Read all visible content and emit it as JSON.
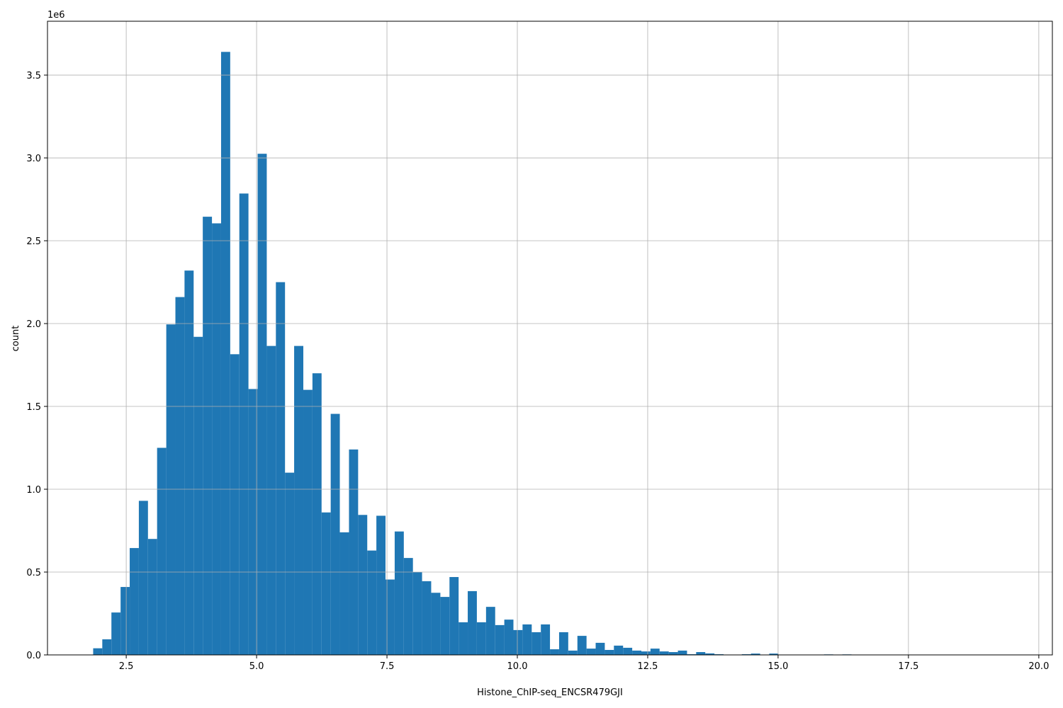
{
  "chart_data": {
    "type": "histogram",
    "x_label": "Histone_ChIP-seq_ENCSR479GJI",
    "y_label": "count",
    "y_offset_label": "1e6",
    "color": "#1f77b4",
    "grid": true,
    "xlim": [
      0.99,
      20.26
    ],
    "ylim": [
      0,
      3.825
    ],
    "xticks": [
      2.5,
      {
        "value": 5,
        "label": "5.0"
      },
      7.5,
      {
        "value": 10,
        "label": "10.0"
      },
      12.5,
      {
        "value": 15,
        "label": "15.0"
      },
      17.5,
      {
        "value": 20,
        "label": "20.0"
      }
    ],
    "yticks": [
      {
        "value": 0,
        "label": "0.0"
      },
      0.5,
      {
        "value": 1,
        "label": "1.0"
      },
      1.5,
      {
        "value": 2,
        "label": "2.0"
      },
      2.5,
      {
        "value": 3,
        "label": "3.0"
      },
      3.5
    ],
    "bins": [
      1.866,
      2.041,
      2.216,
      2.392,
      2.567,
      2.742,
      2.917,
      3.092,
      3.268,
      3.443,
      3.618,
      3.793,
      3.968,
      4.144,
      4.319,
      4.494,
      4.669,
      4.844,
      5.02,
      5.195,
      5.37,
      5.545,
      5.72,
      5.896,
      6.071,
      6.246,
      6.421,
      6.596,
      6.772,
      6.947,
      7.122,
      7.297,
      7.472,
      7.648,
      7.823,
      7.998,
      8.173,
      8.348,
      8.524,
      8.699,
      8.874,
      9.049,
      9.224,
      9.4,
      9.575,
      9.75,
      9.925,
      10.1,
      10.276,
      10.451,
      10.626,
      10.801,
      10.976,
      11.152,
      11.327,
      11.502,
      11.677,
      11.852,
      12.028,
      12.203,
      12.378,
      12.553,
      12.728,
      12.904,
      13.079,
      13.254,
      13.429,
      13.604,
      13.78,
      13.955,
      14.13,
      14.305,
      14.48,
      14.656,
      14.831,
      15.006,
      15.181,
      15.356,
      15.532,
      15.707,
      15.882,
      16.057,
      16.232,
      16.408,
      16.583,
      16.758,
      16.933,
      17.108,
      17.284,
      17.459,
      17.634,
      17.809,
      17.984,
      18.16,
      18.335,
      18.51,
      18.685,
      18.86,
      19.036,
      19.211,
      19.386
    ],
    "values": [
      0.04,
      0.094,
      0.256,
      0.41,
      0.645,
      0.93,
      0.7,
      1.25,
      1.995,
      2.16,
      2.32,
      1.92,
      2.645,
      2.605,
      3.64,
      1.815,
      2.785,
      1.605,
      3.025,
      1.865,
      2.25,
      1.1,
      1.865,
      1.6,
      1.7,
      0.86,
      1.455,
      0.74,
      1.24,
      0.845,
      0.63,
      0.84,
      0.455,
      0.745,
      0.585,
      0.5,
      0.445,
      0.375,
      0.35,
      0.47,
      0.197,
      0.385,
      0.197,
      0.29,
      0.18,
      0.213,
      0.15,
      0.184,
      0.137,
      0.184,
      0.034,
      0.137,
      0.026,
      0.115,
      0.038,
      0.073,
      0.03,
      0.056,
      0.043,
      0.026,
      0.021,
      0.038,
      0.021,
      0.017,
      0.026,
      0.004,
      0.017,
      0.009,
      0.004,
      0.001,
      0,
      0.004,
      0.008,
      0,
      0.008,
      0.0005,
      0.0005,
      0,
      0.0005,
      0,
      0.003,
      0,
      0.003,
      0,
      0.0005,
      0,
      0,
      0,
      0.0005,
      0,
      0,
      0,
      0,
      0,
      0,
      0,
      0,
      0,
      0,
      0.0005
    ]
  }
}
